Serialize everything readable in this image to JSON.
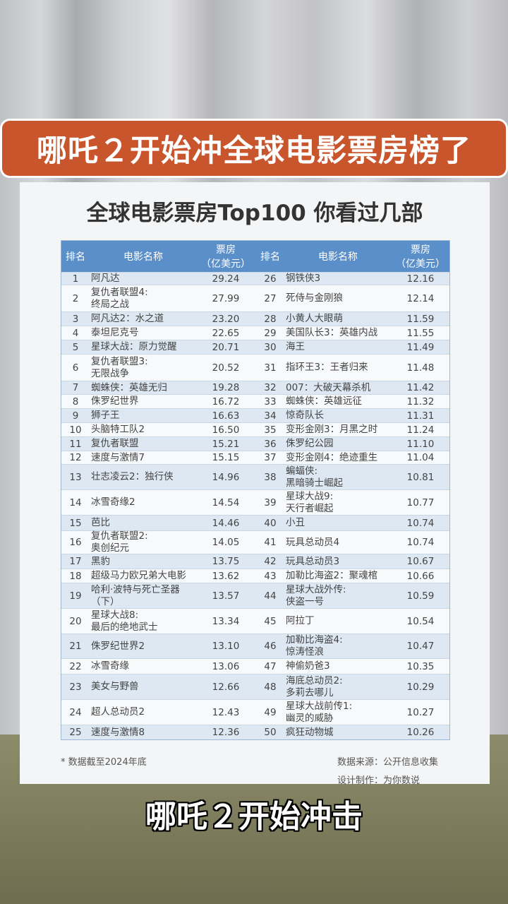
{
  "banner": "哪吒２开始冲全球电影票房榜了",
  "card": {
    "title": "全球电影票房Top100  你看过几部",
    "headers": {
      "rank": "排名",
      "name": "电影名称",
      "box": "票房\n（亿美元）"
    },
    "rows": [
      [
        "1",
        "阿凡达",
        "29.24"
      ],
      [
        "2",
        "复仇者联盟4:\n终局之战",
        "27.99"
      ],
      [
        "3",
        "阿凡达2：水之道",
        "23.20"
      ],
      [
        "4",
        "泰坦尼克号",
        "22.65"
      ],
      [
        "5",
        "星球大战：原力觉醒",
        "20.71"
      ],
      [
        "6",
        "复仇者联盟3:\n无限战争",
        "20.52"
      ],
      [
        "7",
        "蜘蛛侠：英雄无归",
        "19.28"
      ],
      [
        "8",
        "侏罗纪世界",
        "16.72"
      ],
      [
        "9",
        "狮子王",
        "16.63"
      ],
      [
        "10",
        "头脑特工队2",
        "16.50"
      ],
      [
        "11",
        "复仇者联盟",
        "15.21"
      ],
      [
        "12",
        "速度与激情7",
        "15.15"
      ],
      [
        "13",
        "壮志凌云2：独行侠",
        "14.96"
      ],
      [
        "14",
        "冰雪奇缘2",
        "14.54"
      ],
      [
        "15",
        "芭比",
        "14.46"
      ],
      [
        "16",
        "复仇者联盟2:\n奥创纪元",
        "14.05"
      ],
      [
        "17",
        "黑豹",
        "13.75"
      ],
      [
        "18",
        "超级马力欧兄弟大电影",
        "13.62"
      ],
      [
        "19",
        "哈利·波特与死亡圣器\n（下）",
        "13.57"
      ],
      [
        "20",
        "星球大战8:\n最后的绝地武士",
        "13.34"
      ],
      [
        "21",
        "侏罗纪世界2",
        "13.10"
      ],
      [
        "22",
        "冰雪奇缘",
        "13.06"
      ],
      [
        "23",
        "美女与野兽",
        "12.66"
      ],
      [
        "24",
        "超人总动员2",
        "12.43"
      ],
      [
        "25",
        "速度与激情8",
        "12.36"
      ],
      [
        "26",
        "钢铁侠3",
        "12.16"
      ],
      [
        "27",
        "死侍与金刚狼",
        "12.14"
      ],
      [
        "28",
        "小黄人大眼萌",
        "11.59"
      ],
      [
        "29",
        "美国队长3：英雄内战",
        "11.55"
      ],
      [
        "30",
        "海王",
        "11.49"
      ],
      [
        "31",
        "指环王3：王者归来",
        "11.48"
      ],
      [
        "32",
        "007：大破天幕杀机",
        "11.42"
      ],
      [
        "33",
        "蜘蛛侠：英雄远征",
        "11.32"
      ],
      [
        "34",
        "惊奇队长",
        "11.31"
      ],
      [
        "35",
        "变形金刚3：月黑之时",
        "11.24"
      ],
      [
        "36",
        "侏罗纪公园",
        "11.10"
      ],
      [
        "37",
        "变形金刚4：绝迹重生",
        "11.04"
      ],
      [
        "38",
        "蝙蝠侠:\n黑暗骑士崛起",
        "10.81"
      ],
      [
        "39",
        "星球大战9:\n天行者崛起",
        "10.77"
      ],
      [
        "40",
        "小丑",
        "10.74"
      ],
      [
        "41",
        "玩具总动员4",
        "10.74"
      ],
      [
        "42",
        "玩具总动员3",
        "10.67"
      ],
      [
        "43",
        "加勒比海盗2：聚魂棺",
        "10.66"
      ],
      [
        "44",
        "星球大战外传:\n侠盗一号",
        "10.59"
      ],
      [
        "45",
        "阿拉丁",
        "10.54"
      ],
      [
        "46",
        "加勒比海盗4:\n惊涛怪浪",
        "10.47"
      ],
      [
        "47",
        "神偷奶爸3",
        "10.35"
      ],
      [
        "48",
        "海底总动员2:\n多莉去哪儿",
        "10.29"
      ],
      [
        "49",
        "星球大战前传1:\n幽灵的威胁",
        "10.27"
      ],
      [
        "50",
        "疯狂动物城",
        "10.26"
      ]
    ],
    "note": "* 数据截至2024年底",
    "source": "数据来源：公开信息收集",
    "design": "设计制作：为你数说"
  },
  "subtitle": "哪吒２开始冲击",
  "colors": {
    "banner": "#c9552c",
    "header": "#5b8fc9",
    "stripe": "#dde8f3"
  }
}
